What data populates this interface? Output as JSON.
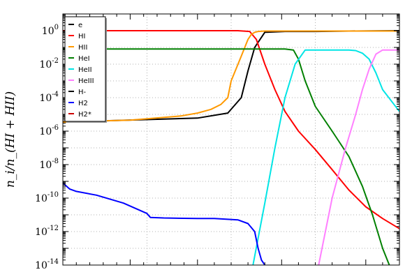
{
  "chart_data": {
    "type": "line",
    "ylabel": "n_i/n_(HI + HII)",
    "yscale": "log",
    "ylim": [
      1e-14,
      10
    ],
    "xscale": "linear",
    "xlim": [
      0,
      1
    ],
    "x_ticks_labeled": false,
    "grid": true,
    "legend_placement": "top-left",
    "y_ticks": [
      {
        "value": 1,
        "label": "10^0"
      },
      {
        "value": 0.01,
        "label": "10^-2"
      },
      {
        "value": 0.0001,
        "label": "10^-4"
      },
      {
        "value": 1e-06,
        "label": "10^-6"
      },
      {
        "value": 1e-08,
        "label": "10^-8"
      },
      {
        "value": 1e-10,
        "label": "10^-10"
      },
      {
        "value": 1e-12,
        "label": "10^-12"
      },
      {
        "value": 1e-14,
        "label": "10^-14"
      }
    ],
    "series": [
      {
        "name": "e",
        "color": "#000000",
        "x": [
          0.0,
          0.4,
          0.49,
          0.53,
          0.55,
          0.57,
          0.6,
          0.66,
          0.75,
          0.85,
          1.0
        ],
        "y": [
          3.5e-06,
          6e-06,
          1.2e-05,
          0.0001,
          0.004,
          0.1,
          0.8,
          0.9,
          0.9,
          0.95,
          1.0
        ]
      },
      {
        "name": "HI",
        "color": "#ff0000",
        "x": [
          0.0,
          0.4,
          0.52,
          0.555,
          0.575,
          0.6,
          0.63,
          0.66,
          0.7,
          0.75,
          0.8,
          0.85,
          0.9,
          0.95,
          1.0
        ],
        "y": [
          1.0,
          1.0,
          1.0,
          0.9,
          0.3,
          0.01,
          0.0003,
          1.5e-05,
          1e-06,
          8e-08,
          5e-09,
          3e-10,
          3e-11,
          6e-12,
          1.5e-12
        ]
      },
      {
        "name": "HII",
        "color": "#ff9900",
        "x": [
          0.0,
          0.2,
          0.35,
          0.4,
          0.44,
          0.47,
          0.49,
          0.5,
          0.53,
          0.55,
          0.56,
          0.57,
          0.58,
          0.6,
          0.7,
          0.85,
          1.0
        ],
        "y": [
          3.5e-06,
          4.5e-06,
          8e-06,
          1.2e-05,
          2e-05,
          4e-05,
          0.0001,
          0.001,
          0.03,
          0.3,
          0.6,
          0.8,
          0.9,
          0.95,
          0.95,
          0.95,
          0.95
        ]
      },
      {
        "name": "HeI",
        "color": "#008000",
        "x": [
          0.0,
          0.5,
          0.66,
          0.685,
          0.7,
          0.72,
          0.75,
          0.8,
          0.85,
          0.89,
          0.92,
          0.95,
          0.97
        ],
        "y": [
          0.08,
          0.08,
          0.08,
          0.07,
          0.02,
          0.001,
          3e-05,
          1e-06,
          3e-08,
          5e-10,
          1e-11,
          1e-13,
          1e-14
        ]
      },
      {
        "name": "HeII",
        "color": "#00e5e5",
        "x": [
          0.565,
          0.6,
          0.63,
          0.66,
          0.69,
          0.72,
          0.78,
          0.83,
          0.85,
          0.87,
          0.89,
          0.91,
          0.93,
          0.95,
          1.0
        ],
        "y": [
          1e-14,
          5e-11,
          1e-07,
          0.0001,
          0.01,
          0.07,
          0.07,
          0.07,
          0.07,
          0.065,
          0.045,
          0.02,
          0.003,
          0.0003,
          1.5e-05
        ]
      },
      {
        "name": "HeIII",
        "color": "#ff80ff",
        "x": [
          0.76,
          0.8,
          0.84,
          0.87,
          0.89,
          0.91,
          0.93,
          0.95,
          1.0
        ],
        "y": [
          1e-14,
          1e-10,
          1e-07,
          1e-05,
          0.0003,
          0.005,
          0.04,
          0.07,
          0.07
        ]
      },
      {
        "name": "H-",
        "color": "#000000",
        "x": [],
        "y": []
      },
      {
        "name": "H2",
        "color": "#0000ff",
        "x": [
          0.0,
          0.02,
          0.04,
          0.1,
          0.18,
          0.25,
          0.26,
          0.3,
          0.4,
          0.45,
          0.52,
          0.55,
          0.57,
          0.58,
          0.59,
          0.6
        ],
        "y": [
          8e-10,
          3.5e-10,
          2.5e-10,
          1.5e-10,
          5e-11,
          1.2e-11,
          7e-12,
          6.5e-12,
          6e-12,
          6e-12,
          5e-12,
          3e-12,
          1e-12,
          1e-13,
          2e-14,
          1e-14
        ]
      },
      {
        "name": "H2*",
        "color": "#cc0000",
        "x": [],
        "y": []
      }
    ]
  }
}
